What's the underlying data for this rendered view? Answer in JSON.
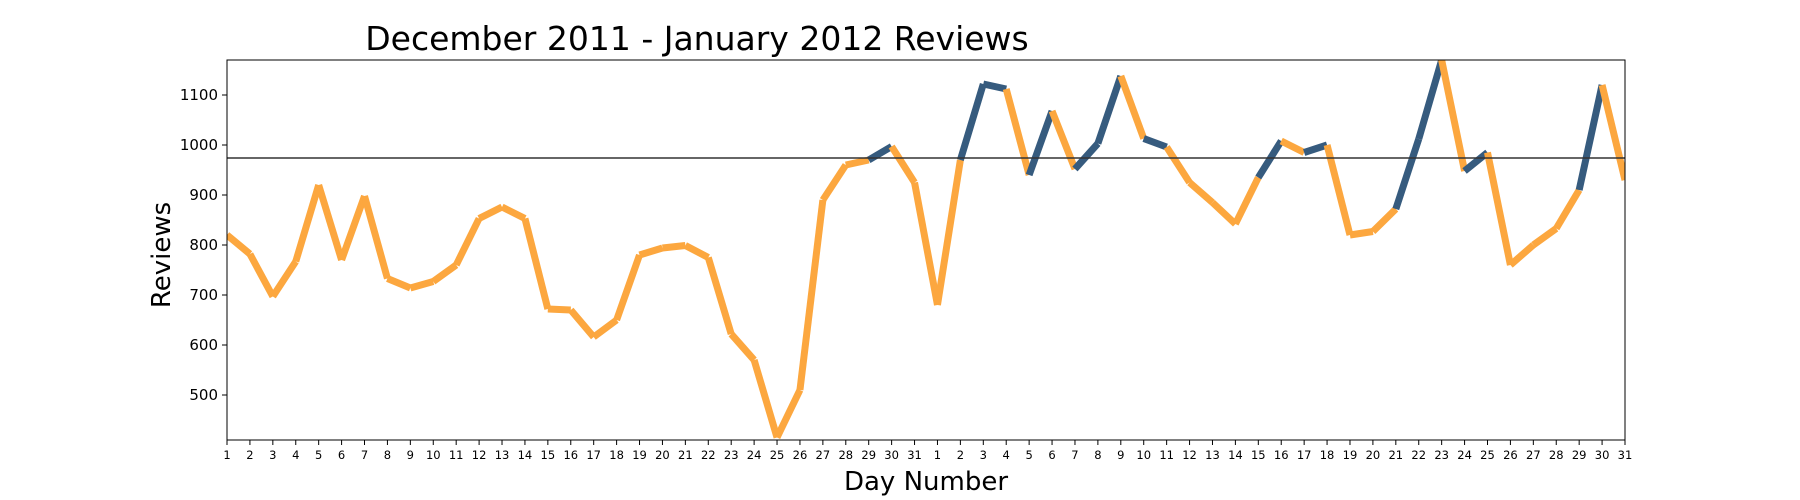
{
  "chart_data": {
    "type": "line",
    "title": "December 2011 - January 2012 Reviews",
    "xlabel": "Day Number",
    "ylabel": "Reviews",
    "ylim": [
      410,
      1170
    ],
    "yticks": [
      500,
      600,
      700,
      800,
      900,
      1000,
      1100
    ],
    "x_tick_labels": [
      "1",
      "2",
      "3",
      "4",
      "5",
      "6",
      "7",
      "8",
      "9",
      "10",
      "11",
      "12",
      "13",
      "14",
      "15",
      "16",
      "17",
      "18",
      "19",
      "20",
      "21",
      "22",
      "23",
      "24",
      "25",
      "26",
      "27",
      "28",
      "29",
      "30",
      "31",
      "1",
      "2",
      "3",
      "4",
      "5",
      "6",
      "7",
      "8",
      "9",
      "10",
      "11",
      "12",
      "13",
      "14",
      "15",
      "16",
      "17",
      "18",
      "19",
      "20",
      "21",
      "22",
      "23",
      "24",
      "25",
      "26",
      "27",
      "28",
      "29",
      "30",
      "31"
    ],
    "values": [
      820,
      782,
      697,
      767,
      920,
      770,
      898,
      733,
      714,
      727,
      760,
      853,
      876,
      853,
      672,
      670,
      616,
      650,
      780,
      794,
      799,
      775,
      622,
      570,
      415,
      510,
      890,
      960,
      970,
      997,
      925,
      680,
      970,
      1122,
      1112,
      940,
      1068,
      952,
      1003,
      1138,
      1013,
      996,
      925,
      885,
      842,
      935,
      1008,
      985,
      1000,
      820,
      827,
      872,
      1012,
      1170,
      948,
      985,
      760,
      800,
      833,
      910,
      1120,
      930
    ],
    "reference_line": 974,
    "series": [
      {
        "color": "#fca73f"
      },
      {
        "color": "#365b7e"
      }
    ],
    "grid": false
  }
}
